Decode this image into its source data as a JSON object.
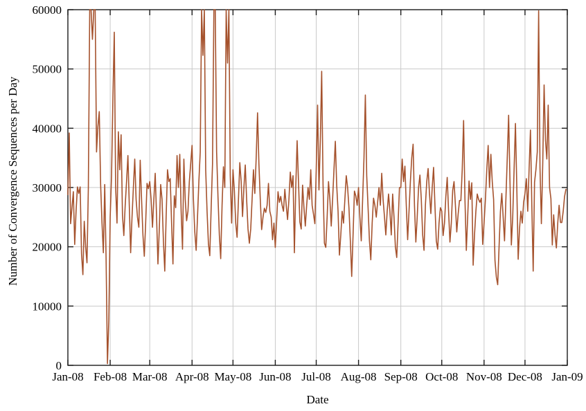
{
  "chart_data": {
    "type": "line",
    "title": "",
    "xlabel": "Date",
    "ylabel": "Number of Convergence Sequences per Day",
    "x_tick_labels": [
      "Jan-08",
      "Feb-08",
      "Mar-08",
      "Apr-08",
      "May-08",
      "Jun-08",
      "Jul-08",
      "Aug-08",
      "Sep-08",
      "Oct-08",
      "Nov-08",
      "Dec-08",
      "Jan-09"
    ],
    "x_tick_day_offsets": [
      0,
      31,
      60,
      91,
      121,
      152,
      182,
      213,
      244,
      274,
      305,
      335,
      366
    ],
    "x_range_days": 366,
    "y_ticks": [
      0,
      10000,
      20000,
      30000,
      40000,
      50000,
      60000
    ],
    "ylim": [
      0,
      60000
    ],
    "grid": true,
    "legend": "none",
    "line_color": "#a5522d",
    "grid_color": "#c9c9c9",
    "border_color": "#1a1a1a",
    "series": [
      {
        "name": "convergence sequences per day",
        "start_date": "Jan-08",
        "values": [
          28800,
          39200,
          23900,
          26600,
          29300,
          20400,
          26000,
          30100,
          29000,
          30100,
          18800,
          15300,
          24300,
          20000,
          17300,
          30000,
          60000,
          60000,
          55000,
          60000,
          60000,
          36000,
          40300,
          42800,
          30500,
          24000,
          19000,
          30500,
          18000,
          300,
          7600,
          25000,
          32000,
          45000,
          56200,
          30000,
          24000,
          39400,
          33000,
          38900,
          25400,
          21900,
          27000,
          31000,
          35400,
          27000,
          19000,
          25000,
          30000,
          34800,
          28000,
          25000,
          23300,
          34600,
          28000,
          22000,
          18400,
          24000,
          30700,
          29800,
          31000,
          28000,
          23300,
          28000,
          32400,
          25000,
          17100,
          23000,
          30500,
          28000,
          21000,
          15900,
          25000,
          33000,
          31000,
          31500,
          24000,
          17100,
          28600,
          26600,
          35400,
          30000,
          35600,
          26000,
          19600,
          34800,
          28000,
          24400,
          26000,
          31000,
          34000,
          37100,
          28000,
          22500,
          19400,
          25000,
          31000,
          36000,
          60000,
          52300,
          60000,
          33000,
          26000,
          20500,
          18500,
          26500,
          34000,
          60000,
          60000,
          36000,
          28500,
          22000,
          18000,
          27000,
          33500,
          30000,
          60000,
          51000,
          60000,
          32000,
          24000,
          33000,
          29500,
          24000,
          21600,
          28000,
          34200,
          31000,
          25100,
          30000,
          33800,
          28000,
          23000,
          20600,
          23000,
          28000,
          33000,
          29000,
          35000,
          42600,
          34000,
          28000,
          22900,
          25000,
          26500,
          25800,
          27000,
          30700,
          26000,
          25000,
          21200,
          24000,
          19900,
          24500,
          29300,
          27500,
          28500,
          27000,
          26000,
          29700,
          27000,
          24600,
          28000,
          32600,
          30000,
          32000,
          19000,
          30000,
          37900,
          31000,
          24200,
          23000,
          30400,
          26600,
          23500,
          27000,
          30000,
          28000,
          33000,
          27000,
          25500,
          23900,
          33000,
          43900,
          29600,
          38000,
          49600,
          30500,
          20600,
          19900,
          25000,
          31000,
          28000,
          23500,
          28000,
          33000,
          37800,
          30400,
          26000,
          18600,
          22000,
          26000,
          24000,
          28000,
          32000,
          30000,
          26500,
          21000,
          15000,
          22000,
          29400,
          28600,
          27000,
          30000,
          25000,
          21000,
          28000,
          35000,
          45600,
          32000,
          26600,
          21000,
          17800,
          24000,
          28200,
          27000,
          25000,
          27500,
          30000,
          27000,
          32400,
          28000,
          25100,
          22000,
          26000,
          28900,
          26000,
          22000,
          28900,
          25000,
          20000,
          18200,
          24000,
          30000,
          30000,
          34800,
          31000,
          33600,
          27000,
          21200,
          26000,
          31000,
          35000,
          37300,
          27000,
          20800,
          25000,
          30000,
          32100,
          28000,
          22000,
          19400,
          27000,
          31000,
          33200,
          29000,
          25600,
          30000,
          33400,
          27000,
          21000,
          19600,
          24000,
          26600,
          26000,
          21900,
          24000,
          28500,
          31700,
          26000,
          20800,
          24000,
          29500,
          31000,
          27000,
          22500,
          25500,
          27800,
          27800,
          33000,
          41300,
          28000,
          19400,
          25000,
          31100,
          28000,
          30800,
          16900,
          22000,
          26000,
          28900,
          28000,
          27500,
          28200,
          20400,
          24000,
          28000,
          33000,
          37100,
          30000,
          35600,
          31000,
          28000,
          17700,
          14900,
          13600,
          20000,
          26000,
          29000,
          25000,
          21000,
          28000,
          35000,
          42200,
          31000,
          20300,
          25000,
          33000,
          40800,
          30000,
          17900,
          23100,
          26000,
          24000,
          27500,
          29000,
          31500,
          26000,
          33000,
          39700,
          27000,
          15900,
          30900,
          33000,
          36000,
          59800,
          33300,
          23900,
          34000,
          47300,
          38000,
          34800,
          43900,
          30000,
          28100,
          20300,
          25400,
          22000,
          19800,
          24000,
          27000,
          24100,
          24100,
          26000,
          28500,
          29700
        ]
      }
    ]
  }
}
